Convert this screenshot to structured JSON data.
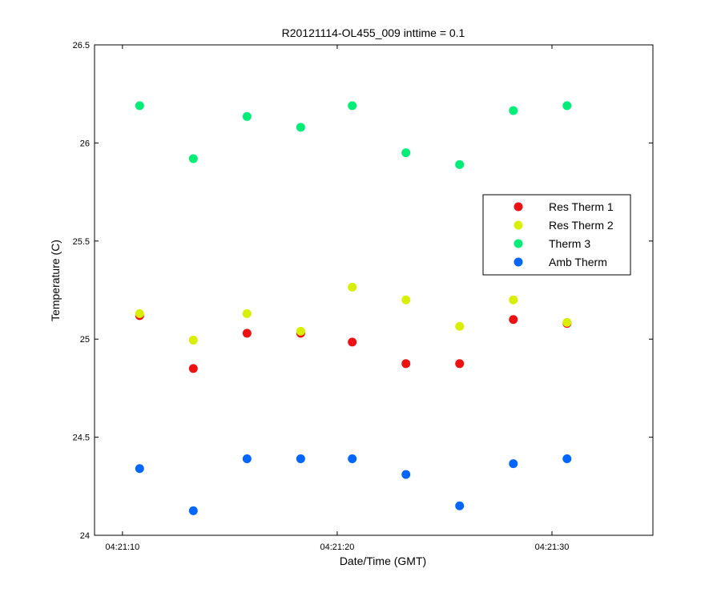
{
  "chart_data": {
    "type": "scatter",
    "title": "R20121114-OL455_009 inttime = 0.1",
    "xlabel": "Date/Time (GMT)",
    "ylabel": "Temperature (C)",
    "x_axis": {
      "type": "time",
      "range": [
        "04:21:08.7",
        "04:21:34.7"
      ],
      "ticks": [
        "04:21:10",
        "04:21:20",
        "04:21:30"
      ]
    },
    "y_axis": {
      "range": [
        24,
        26.5
      ],
      "ticks": [
        "24",
        "24.5",
        "25",
        "25.5",
        "26",
        "26.5"
      ]
    },
    "grid": false,
    "legend_position": "right",
    "x": [
      "04:21:10.8",
      "04:21:13.3",
      "04:21:15.8",
      "04:21:18.3",
      "04:21:20.7",
      "04:21:23.2",
      "04:21:25.7",
      "04:21:28.2",
      "04:21:30.7"
    ],
    "series": [
      {
        "name": "Res Therm 1",
        "color": "#ee1111",
        "values": [
          25.12,
          24.85,
          25.03,
          25.03,
          24.985,
          24.875,
          24.875,
          25.1,
          25.08
        ]
      },
      {
        "name": "Res Therm 2",
        "color": "#d8f000",
        "values": [
          25.13,
          24.995,
          25.13,
          25.04,
          25.265,
          25.2,
          25.065,
          25.2,
          25.085
        ]
      },
      {
        "name": "Therm 3",
        "color": "#00ee77",
        "values": [
          26.19,
          25.92,
          26.135,
          26.08,
          26.19,
          25.95,
          25.89,
          26.165,
          26.19
        ]
      },
      {
        "name": "Amb Therm",
        "color": "#0066ff",
        "values": [
          24.34,
          24.125,
          24.39,
          24.39,
          24.39,
          24.31,
          24.15,
          24.365,
          24.39
        ]
      }
    ]
  }
}
